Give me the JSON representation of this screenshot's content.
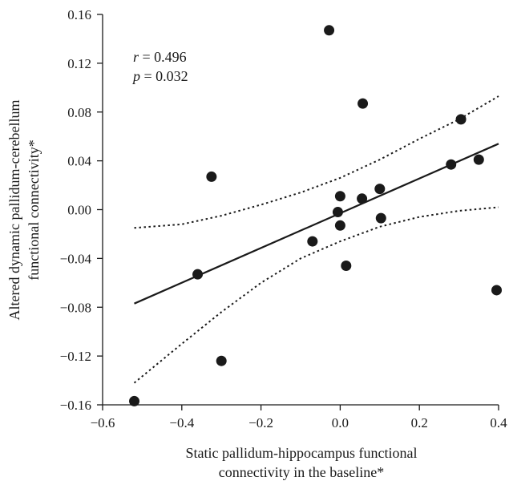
{
  "chart_data": {
    "type": "scatter",
    "xlabel_lines": [
      "Static pallidum-hippocampus functional",
      "connectivity in the baseline*"
    ],
    "ylabel_lines": [
      "Altered dynamic pallidum-cerebellum",
      "functional connectivity*"
    ],
    "xlim": [
      -0.6,
      0.4
    ],
    "ylim": [
      -0.16,
      0.16
    ],
    "x_ticks": [
      -0.6,
      -0.4,
      -0.2,
      0.0,
      0.2,
      0.4
    ],
    "x_tick_labels": [
      "−0.6",
      "−0.4",
      "−0.2",
      "0.0",
      "0.2",
      "0.4"
    ],
    "y_ticks": [
      0.16,
      0.12,
      0.08,
      0.04,
      0.0,
      -0.04,
      -0.08,
      -0.12,
      -0.16
    ],
    "y_tick_labels": [
      "0.16",
      "0.12",
      "0.08",
      "0.04",
      "0.00",
      "−0.04",
      "−0.08",
      "−0.12",
      "−0.16"
    ],
    "annotation": {
      "r_label": "r",
      "r_value": " = 0.496",
      "p_label": "p",
      "p_value": " = 0.032"
    },
    "points": [
      {
        "x": -0.52,
        "y": -0.157
      },
      {
        "x": -0.36,
        "y": -0.053
      },
      {
        "x": -0.325,
        "y": 0.027
      },
      {
        "x": -0.3,
        "y": -0.124
      },
      {
        "x": -0.07,
        "y": -0.026
      },
      {
        "x": -0.028,
        "y": 0.147
      },
      {
        "x": -0.006,
        "y": -0.002
      },
      {
        "x": 0.0,
        "y": 0.011
      },
      {
        "x": 0.0,
        "y": -0.013
      },
      {
        "x": 0.015,
        "y": -0.046
      },
      {
        "x": 0.055,
        "y": 0.009
      },
      {
        "x": 0.057,
        "y": 0.087
      },
      {
        "x": 0.1,
        "y": 0.017
      },
      {
        "x": 0.103,
        "y": -0.007
      },
      {
        "x": 0.28,
        "y": 0.037
      },
      {
        "x": 0.305,
        "y": 0.074
      },
      {
        "x": 0.35,
        "y": 0.041
      },
      {
        "x": 0.395,
        "y": -0.066
      }
    ],
    "fit_line": [
      [
        -0.52,
        -0.077
      ],
      [
        0.4,
        0.054
      ]
    ],
    "ci_upper": [
      [
        -0.52,
        -0.015
      ],
      [
        -0.4,
        -0.012
      ],
      [
        -0.3,
        -0.005
      ],
      [
        -0.2,
        0.004
      ],
      [
        -0.1,
        0.014
      ],
      [
        0.0,
        0.026
      ],
      [
        0.1,
        0.041
      ],
      [
        0.2,
        0.058
      ],
      [
        0.3,
        0.074
      ],
      [
        0.4,
        0.093
      ]
    ],
    "ci_lower": [
      [
        -0.52,
        -0.142
      ],
      [
        -0.4,
        -0.11
      ],
      [
        -0.3,
        -0.084
      ],
      [
        -0.2,
        -0.06
      ],
      [
        -0.1,
        -0.04
      ],
      [
        0.0,
        -0.026
      ],
      [
        0.1,
        -0.014
      ],
      [
        0.2,
        -0.006
      ],
      [
        0.3,
        -0.001
      ],
      [
        0.4,
        0.002
      ]
    ]
  }
}
